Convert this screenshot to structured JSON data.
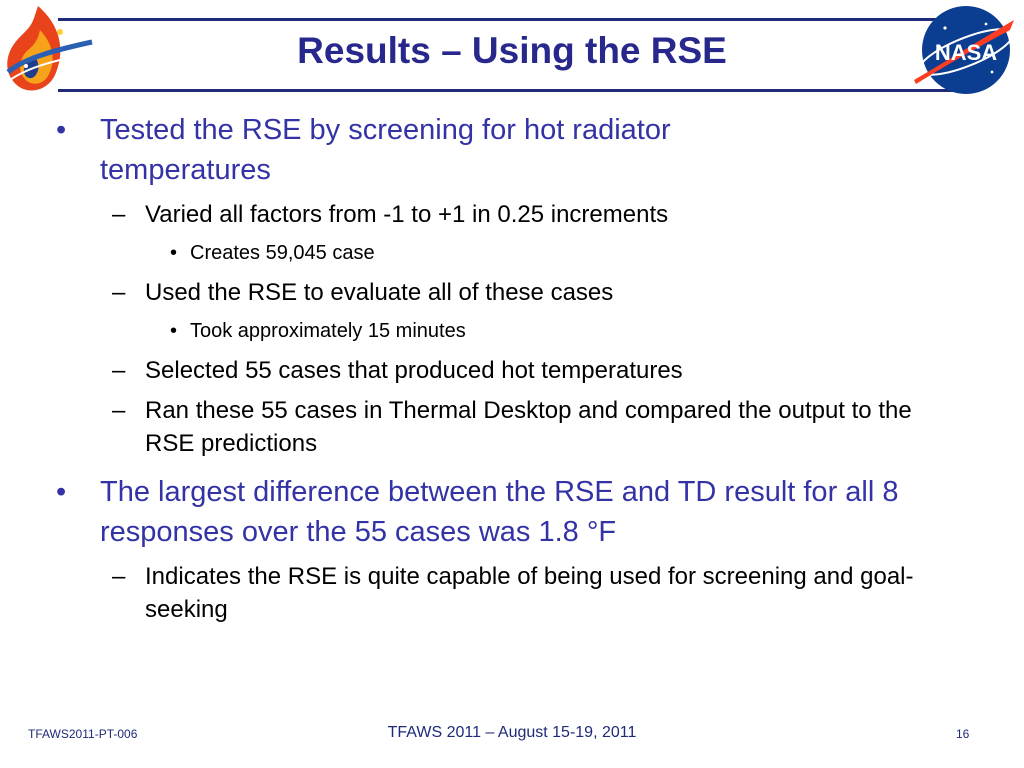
{
  "slide": {
    "title": "Results – Using the RSE"
  },
  "bullets": [
    {
      "marker": "•",
      "text": "Tested the RSE by screening for hot radiator temperatures"
    },
    {
      "marker": "–",
      "text": "Varied all factors from -1 to +1 in 0.25 increments"
    },
    {
      "marker": "•",
      "text": "Creates 59,045 case"
    },
    {
      "marker": "–",
      "text": "Used the RSE to evaluate all of these cases"
    },
    {
      "marker": "•",
      "text": "Took approximately 15 minutes"
    },
    {
      "marker": "–",
      "text": "Selected 55 cases that produced hot temperatures"
    },
    {
      "marker": "–",
      "text": "Ran these 55 cases in Thermal Desktop and compared the output to the RSE predictions"
    },
    {
      "marker": "•",
      "text": "The largest difference between the RSE and TD result for all 8 responses over the 55 cases was 1.8 °F"
    },
    {
      "marker": "–",
      "text": "Indicates the RSE is quite capable of being used for screening and goal-seeking"
    }
  ],
  "footer": {
    "left": "TFAWS2011-PT-006",
    "center": "TFAWS 2011 – August 15-19, 2011",
    "right": "16"
  },
  "logos": {
    "right_text": "NASA"
  },
  "colors": {
    "title": "#28288c",
    "level1": "#3333a6",
    "header_rule": "#1f2a78"
  }
}
